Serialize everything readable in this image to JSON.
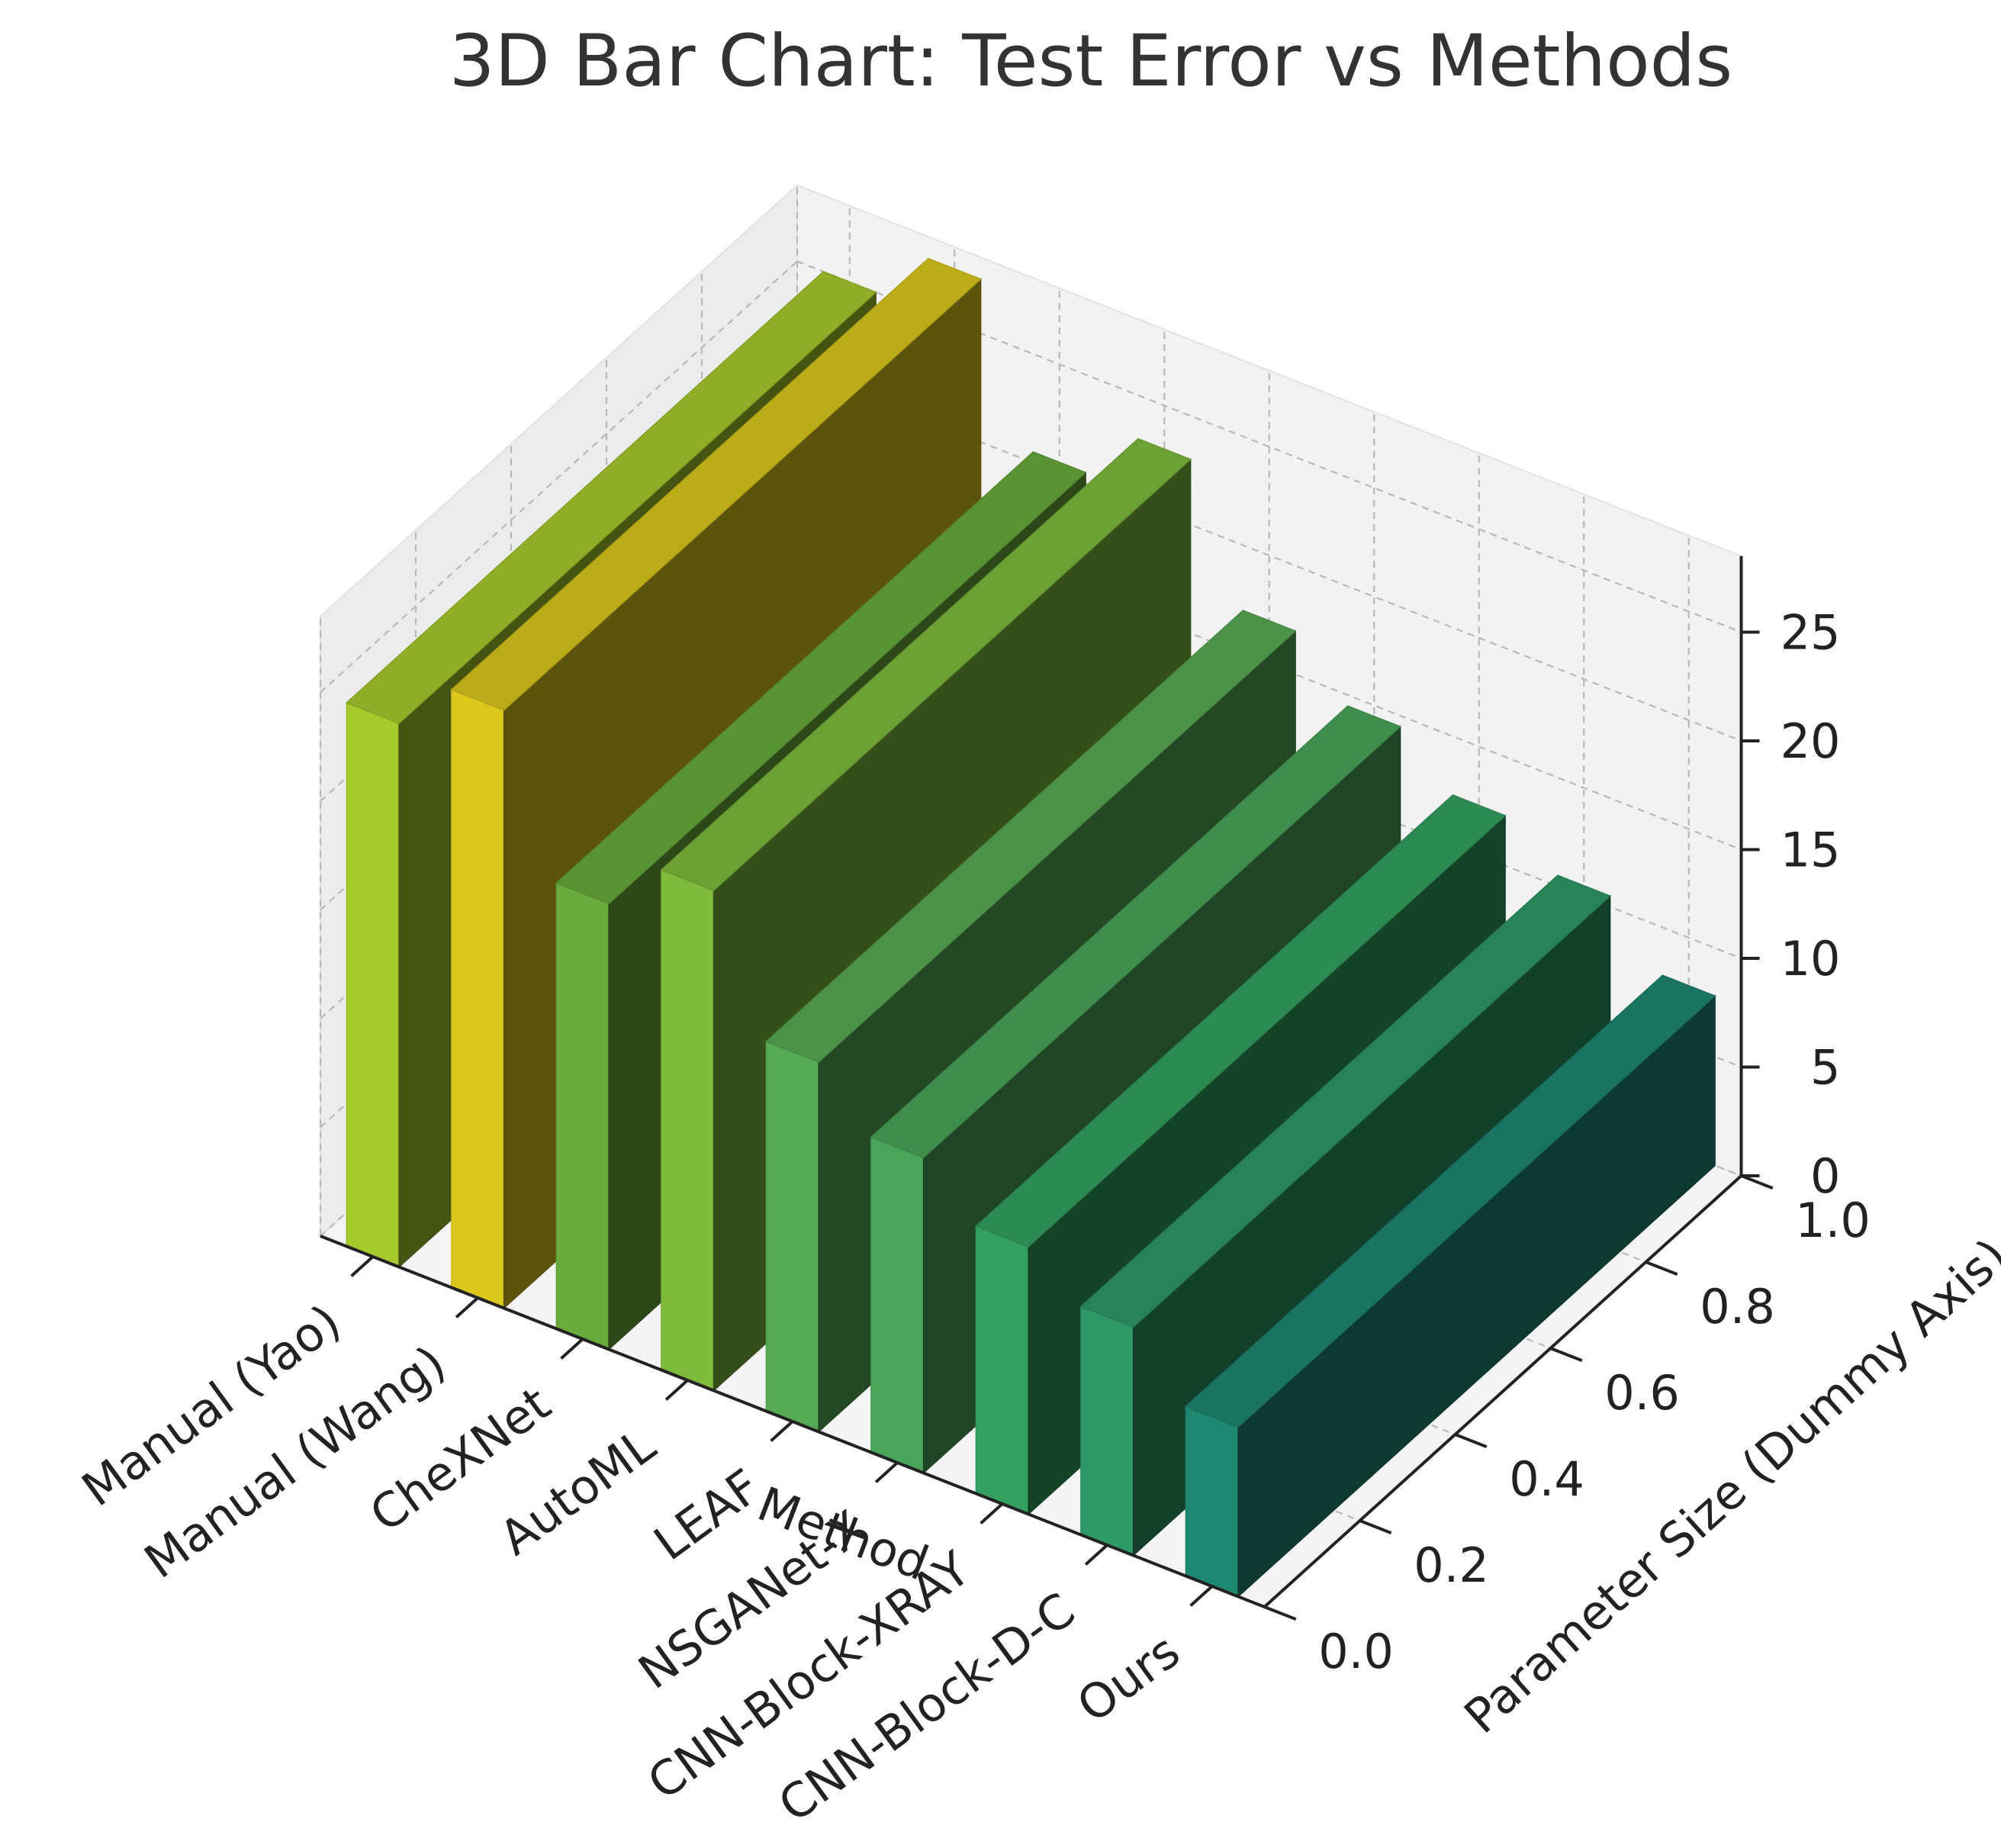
{
  "chart_data": {
    "type": "bar",
    "projection": "3d",
    "title": "3D Bar Chart: Test Error vs Methods",
    "xlabel": "Method",
    "ylabel": "Parameter Size (Dummy Axis)",
    "zlabel": "",
    "categories": [
      "Manual (Yao)",
      "Manual (Wang)",
      "CheXNet",
      "AutoML",
      "LEAF",
      "NSGANet-X",
      "CNN-Block-XRAY",
      "CNN-Block-D-C",
      "Ours"
    ],
    "values": [
      25.0,
      27.5,
      20.5,
      23.0,
      17.0,
      14.5,
      12.3,
      10.5,
      7.8
    ],
    "colors": [
      "#a6c92c",
      "#dcc81d",
      "#69ab3c",
      "#7ebb3d",
      "#58ab55",
      "#4aa55a",
      "#33a060",
      "#2e9966",
      "#1e8772"
    ],
    "dummy_axis": {
      "ticks": [
        "0.0",
        "0.2",
        "0.4",
        "0.6",
        "0.8",
        "1.0"
      ],
      "range": [
        0,
        1
      ]
    },
    "z_axis": {
      "ticks": [
        "0",
        "5",
        "10",
        "15",
        "20",
        "25"
      ],
      "range": [
        0,
        28.5
      ]
    },
    "grid": true
  }
}
